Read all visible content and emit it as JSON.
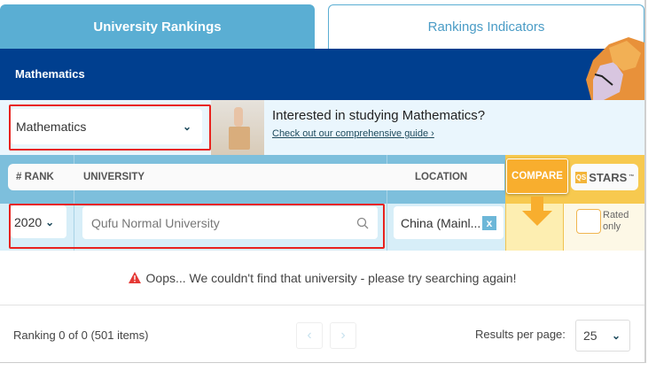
{
  "tabs": [
    {
      "label": "University Rankings",
      "active": true
    },
    {
      "label": "Rankings Indicators",
      "active": false
    }
  ],
  "header": {
    "title": "Mathematics"
  },
  "subject_select": {
    "value": "Mathematics"
  },
  "banner": {
    "heading": "Interested in studying Mathematics?",
    "link": "Check out our comprehensive guide"
  },
  "table_header": {
    "rank": "# RANK",
    "university": "UNIVERSITY",
    "location": "LOCATION",
    "compare": "COMPARE",
    "stars_logo": "QS",
    "stars": "STARS",
    "tm": "™"
  },
  "filters": {
    "year": "2020",
    "search_value": "Qufu Normal University",
    "location": "China (Mainl...",
    "location_clear": "x",
    "rated_only": "Rated only",
    "rated_checked": false
  },
  "message": "Oops... We couldn't find that university - please try searching again!",
  "footer": {
    "ranking_info": "Ranking 0 of 0 (501 items)",
    "prev": "‹",
    "next": "›",
    "results_label": "Results per page:",
    "results_value": "25"
  },
  "colors": {
    "primary": "#5aaed3",
    "header_bg": "#003f8f",
    "compare": "#f8ae2e",
    "stars": "#f7c94f",
    "error": "#e53935",
    "highlight": "#e8221e"
  }
}
